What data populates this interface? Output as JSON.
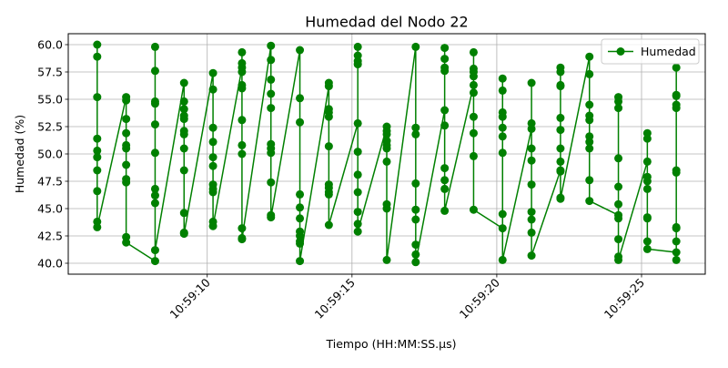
{
  "chart_data": {
    "type": "line",
    "title": "Humedad del Nodo 22",
    "xlabel": "Tiempo (HH:MM:SS.µs)",
    "ylabel": "Humedad (%)",
    "xlim": [
      "10:59:05.2",
      "10:59:27.2"
    ],
    "ylim": [
      39.0,
      61.0
    ],
    "x_ticks": [
      "10:59:10",
      "10:59:15",
      "10:59:20",
      "10:59:25"
    ],
    "y_ticks": [
      "40.0",
      "42.5",
      "45.0",
      "47.5",
      "50.0",
      "52.5",
      "55.0",
      "57.5",
      "60.0"
    ],
    "grid": true,
    "legend_position": "top-right",
    "series": [
      {
        "name": "Humedad",
        "color": "#008000",
        "marker": "circle",
        "points": [
          {
            "t": "10:59:06.2",
            "y": 60.0
          },
          {
            "t": "10:59:06.2",
            "y": 58.9
          },
          {
            "t": "10:59:06.2",
            "y": 55.2
          },
          {
            "t": "10:59:06.2",
            "y": 51.4
          },
          {
            "t": "10:59:06.2",
            "y": 50.3
          },
          {
            "t": "10:59:06.2",
            "y": 49.7
          },
          {
            "t": "10:59:06.2",
            "y": 48.5
          },
          {
            "t": "10:59:06.2",
            "y": 46.6
          },
          {
            "t": "10:59:06.2",
            "y": 43.8
          },
          {
            "t": "10:59:06.2",
            "y": 43.3
          },
          {
            "t": "10:59:07.2",
            "y": 55.2
          },
          {
            "t": "10:59:07.2",
            "y": 54.9
          },
          {
            "t": "10:59:07.2",
            "y": 53.2
          },
          {
            "t": "10:59:07.2",
            "y": 51.9
          },
          {
            "t": "10:59:07.2",
            "y": 50.8
          },
          {
            "t": "10:59:07.2",
            "y": 50.5
          },
          {
            "t": "10:59:07.2",
            "y": 49.0
          },
          {
            "t": "10:59:07.2",
            "y": 47.7
          },
          {
            "t": "10:59:07.2",
            "y": 47.4
          },
          {
            "t": "10:59:07.2",
            "y": 42.4
          },
          {
            "t": "10:59:07.2",
            "y": 41.9
          },
          {
            "t": "10:59:08.2",
            "y": 40.2
          },
          {
            "t": "10:59:08.2",
            "y": 59.8
          },
          {
            "t": "10:59:08.2",
            "y": 57.6
          },
          {
            "t": "10:59:08.2",
            "y": 54.8
          },
          {
            "t": "10:59:08.2",
            "y": 54.6
          },
          {
            "t": "10:59:08.2",
            "y": 52.7
          },
          {
            "t": "10:59:08.2",
            "y": 50.1
          },
          {
            "t": "10:59:08.2",
            "y": 46.8
          },
          {
            "t": "10:59:08.2",
            "y": 46.2
          },
          {
            "t": "10:59:08.2",
            "y": 45.5
          },
          {
            "t": "10:59:08.2",
            "y": 41.2
          },
          {
            "t": "10:59:09.2",
            "y": 56.5
          },
          {
            "t": "10:59:09.2",
            "y": 54.8
          },
          {
            "t": "10:59:09.2",
            "y": 54.1
          },
          {
            "t": "10:59:09.2",
            "y": 53.5
          },
          {
            "t": "10:59:09.2",
            "y": 53.2
          },
          {
            "t": "10:59:09.2",
            "y": 52.1
          },
          {
            "t": "10:59:09.2",
            "y": 51.8
          },
          {
            "t": "10:59:09.2",
            "y": 50.5
          },
          {
            "t": "10:59:09.2",
            "y": 48.5
          },
          {
            "t": "10:59:09.2",
            "y": 44.6
          },
          {
            "t": "10:59:09.2",
            "y": 42.8
          },
          {
            "t": "10:59:09.2",
            "y": 42.7
          },
          {
            "t": "10:59:10.2",
            "y": 57.4
          },
          {
            "t": "10:59:10.2",
            "y": 55.9
          },
          {
            "t": "10:59:10.2",
            "y": 52.4
          },
          {
            "t": "10:59:10.2",
            "y": 51.1
          },
          {
            "t": "10:59:10.2",
            "y": 49.7
          },
          {
            "t": "10:59:10.2",
            "y": 48.9
          },
          {
            "t": "10:59:10.2",
            "y": 47.2
          },
          {
            "t": "10:59:10.2",
            "y": 46.8
          },
          {
            "t": "10:59:10.2",
            "y": 46.5
          },
          {
            "t": "10:59:10.2",
            "y": 43.8
          },
          {
            "t": "10:59:10.2",
            "y": 43.4
          },
          {
            "t": "10:59:11.2",
            "y": 57.9
          },
          {
            "t": "10:59:11.2",
            "y": 59.3
          },
          {
            "t": "10:59:11.2",
            "y": 58.3
          },
          {
            "t": "10:59:11.2",
            "y": 57.5
          },
          {
            "t": "10:59:11.2",
            "y": 56.3
          },
          {
            "t": "10:59:11.2",
            "y": 56.0
          },
          {
            "t": "10:59:11.2",
            "y": 53.1
          },
          {
            "t": "10:59:11.2",
            "y": 50.8
          },
          {
            "t": "10:59:11.2",
            "y": 50.0
          },
          {
            "t": "10:59:11.2",
            "y": 43.2
          },
          {
            "t": "10:59:11.2",
            "y": 42.3
          },
          {
            "t": "10:59:11.2",
            "y": 42.2
          },
          {
            "t": "10:59:12.2",
            "y": 59.9
          },
          {
            "t": "10:59:12.2",
            "y": 58.6
          },
          {
            "t": "10:59:12.2",
            "y": 56.8
          },
          {
            "t": "10:59:12.2",
            "y": 55.5
          },
          {
            "t": "10:59:12.2",
            "y": 54.2
          },
          {
            "t": "10:59:12.2",
            "y": 50.9
          },
          {
            "t": "10:59:12.2",
            "y": 50.5
          },
          {
            "t": "10:59:12.2",
            "y": 50.1
          },
          {
            "t": "10:59:12.2",
            "y": 47.4
          },
          {
            "t": "10:59:12.2",
            "y": 44.4
          },
          {
            "t": "10:59:12.2",
            "y": 44.2
          },
          {
            "t": "10:59:13.2",
            "y": 59.5
          },
          {
            "t": "10:59:13.2",
            "y": 55.1
          },
          {
            "t": "10:59:13.2",
            "y": 52.9
          },
          {
            "t": "10:59:13.2",
            "y": 46.3
          },
          {
            "t": "10:59:13.2",
            "y": 45.1
          },
          {
            "t": "10:59:13.2",
            "y": 44.1
          },
          {
            "t": "10:59:13.2",
            "y": 42.9
          },
          {
            "t": "10:59:13.2",
            "y": 42.5
          },
          {
            "t": "10:59:13.2",
            "y": 42.0
          },
          {
            "t": "10:59:13.2",
            "y": 41.8
          },
          {
            "t": "10:59:13.2",
            "y": 40.2
          },
          {
            "t": "10:59:14.2",
            "y": 56.2
          },
          {
            "t": "10:59:14.2",
            "y": 56.5
          },
          {
            "t": "10:59:14.2",
            "y": 54.1
          },
          {
            "t": "10:59:14.2",
            "y": 53.8
          },
          {
            "t": "10:59:14.2",
            "y": 53.4
          },
          {
            "t": "10:59:14.2",
            "y": 50.7
          },
          {
            "t": "10:59:14.2",
            "y": 47.2
          },
          {
            "t": "10:59:14.2",
            "y": 46.9
          },
          {
            "t": "10:59:14.2",
            "y": 46.5
          },
          {
            "t": "10:59:14.2",
            "y": 46.3
          },
          {
            "t": "10:59:14.2",
            "y": 43.5
          },
          {
            "t": "10:59:15.2",
            "y": 52.8
          },
          {
            "t": "10:59:15.2",
            "y": 59.8
          },
          {
            "t": "10:59:15.2",
            "y": 59.0
          },
          {
            "t": "10:59:15.2",
            "y": 58.5
          },
          {
            "t": "10:59:15.2",
            "y": 58.2
          },
          {
            "t": "10:59:15.2",
            "y": 50.2
          },
          {
            "t": "10:59:15.2",
            "y": 48.1
          },
          {
            "t": "10:59:15.2",
            "y": 46.5
          },
          {
            "t": "10:59:15.2",
            "y": 44.7
          },
          {
            "t": "10:59:15.2",
            "y": 43.6
          },
          {
            "t": "10:59:15.2",
            "y": 42.9
          },
          {
            "t": "10:59:16.2",
            "y": 52.5
          },
          {
            "t": "10:59:16.2",
            "y": 52.1
          },
          {
            "t": "10:59:16.2",
            "y": 51.8
          },
          {
            "t": "10:59:16.2",
            "y": 51.2
          },
          {
            "t": "10:59:16.2",
            "y": 50.8
          },
          {
            "t": "10:59:16.2",
            "y": 50.5
          },
          {
            "t": "10:59:16.2",
            "y": 49.3
          },
          {
            "t": "10:59:16.2",
            "y": 45.4
          },
          {
            "t": "10:59:16.2",
            "y": 45.0
          },
          {
            "t": "10:59:16.2",
            "y": 40.3
          },
          {
            "t": "10:59:17.2",
            "y": 59.8
          },
          {
            "t": "10:59:17.2",
            "y": 52.4
          },
          {
            "t": "10:59:17.2",
            "y": 51.8
          },
          {
            "t": "10:59:17.2",
            "y": 47.3
          },
          {
            "t": "10:59:17.2",
            "y": 44.9
          },
          {
            "t": "10:59:17.2",
            "y": 44.0
          },
          {
            "t": "10:59:17.2",
            "y": 41.7
          },
          {
            "t": "10:59:17.2",
            "y": 40.8
          },
          {
            "t": "10:59:17.2",
            "y": 40.1
          },
          {
            "t": "10:59:18.2",
            "y": 54.0
          },
          {
            "t": "10:59:18.2",
            "y": 59.7
          },
          {
            "t": "10:59:18.2",
            "y": 58.7
          },
          {
            "t": "10:59:18.2",
            "y": 57.9
          },
          {
            "t": "10:59:18.2",
            "y": 57.6
          },
          {
            "t": "10:59:18.2",
            "y": 52.6
          },
          {
            "t": "10:59:18.2",
            "y": 48.7
          },
          {
            "t": "10:59:18.2",
            "y": 47.6
          },
          {
            "t": "10:59:18.2",
            "y": 46.8
          },
          {
            "t": "10:59:18.2",
            "y": 44.8
          },
          {
            "t": "10:59:19.2",
            "y": 56.3
          },
          {
            "t": "10:59:19.2",
            "y": 59.3
          },
          {
            "t": "10:59:19.2",
            "y": 57.8
          },
          {
            "t": "10:59:19.2",
            "y": 57.5
          },
          {
            "t": "10:59:19.2",
            "y": 57.1
          },
          {
            "t": "10:59:19.2",
            "y": 55.6
          },
          {
            "t": "10:59:19.2",
            "y": 53.4
          },
          {
            "t": "10:59:19.2",
            "y": 51.9
          },
          {
            "t": "10:59:19.2",
            "y": 49.8
          },
          {
            "t": "10:59:19.2",
            "y": 44.9
          },
          {
            "t": "10:59:20.2",
            "y": 43.2
          },
          {
            "t": "10:59:20.2",
            "y": 56.9
          },
          {
            "t": "10:59:20.2",
            "y": 55.8
          },
          {
            "t": "10:59:20.2",
            "y": 53.8
          },
          {
            "t": "10:59:20.2",
            "y": 53.4
          },
          {
            "t": "10:59:20.2",
            "y": 52.4
          },
          {
            "t": "10:59:20.2",
            "y": 51.6
          },
          {
            "t": "10:59:20.2",
            "y": 50.1
          },
          {
            "t": "10:59:20.2",
            "y": 44.5
          },
          {
            "t": "10:59:20.2",
            "y": 40.3
          },
          {
            "t": "10:59:21.2",
            "y": 52.3
          },
          {
            "t": "10:59:21.2",
            "y": 56.5
          },
          {
            "t": "10:59:21.2",
            "y": 52.8
          },
          {
            "t": "10:59:21.2",
            "y": 50.5
          },
          {
            "t": "10:59:21.2",
            "y": 49.4
          },
          {
            "t": "10:59:21.2",
            "y": 47.2
          },
          {
            "t": "10:59:21.2",
            "y": 44.7
          },
          {
            "t": "10:59:21.2",
            "y": 44.0
          },
          {
            "t": "10:59:21.2",
            "y": 42.8
          },
          {
            "t": "10:59:21.2",
            "y": 40.7
          },
          {
            "t": "10:59:22.2",
            "y": 48.5
          },
          {
            "t": "10:59:22.2",
            "y": 57.9
          },
          {
            "t": "10:59:22.2",
            "y": 57.5
          },
          {
            "t": "10:59:22.2",
            "y": 56.3
          },
          {
            "t": "10:59:22.2",
            "y": 56.2
          },
          {
            "t": "10:59:22.2",
            "y": 53.3
          },
          {
            "t": "10:59:22.2",
            "y": 52.2
          },
          {
            "t": "10:59:22.2",
            "y": 50.5
          },
          {
            "t": "10:59:22.2",
            "y": 49.3
          },
          {
            "t": "10:59:22.2",
            "y": 48.4
          },
          {
            "t": "10:59:22.2",
            "y": 46.0
          },
          {
            "t": "10:59:22.2",
            "y": 45.9
          },
          {
            "t": "10:59:23.2",
            "y": 58.9
          },
          {
            "t": "10:59:23.2",
            "y": 57.3
          },
          {
            "t": "10:59:23.2",
            "y": 54.5
          },
          {
            "t": "10:59:23.2",
            "y": 53.5
          },
          {
            "t": "10:59:23.2",
            "y": 53.1
          },
          {
            "t": "10:59:23.2",
            "y": 51.6
          },
          {
            "t": "10:59:23.2",
            "y": 51.1
          },
          {
            "t": "10:59:23.2",
            "y": 50.5
          },
          {
            "t": "10:59:23.2",
            "y": 47.6
          },
          {
            "t": "10:59:23.2",
            "y": 45.7
          },
          {
            "t": "10:59:24.2",
            "y": 44.4
          },
          {
            "t": "10:59:24.2",
            "y": 55.2
          },
          {
            "t": "10:59:24.2",
            "y": 54.8
          },
          {
            "t": "10:59:24.2",
            "y": 54.2
          },
          {
            "t": "10:59:24.2",
            "y": 49.6
          },
          {
            "t": "10:59:24.2",
            "y": 47.0
          },
          {
            "t": "10:59:24.2",
            "y": 45.4
          },
          {
            "t": "10:59:24.2",
            "y": 44.1
          },
          {
            "t": "10:59:24.2",
            "y": 42.2
          },
          {
            "t": "10:59:24.2",
            "y": 40.6
          },
          {
            "t": "10:59:24.2",
            "y": 40.3
          },
          {
            "t": "10:59:25.2",
            "y": 49.3
          },
          {
            "t": "10:59:25.2",
            "y": 51.9
          },
          {
            "t": "10:59:25.2",
            "y": 51.4
          },
          {
            "t": "10:59:25.2",
            "y": 47.9
          },
          {
            "t": "10:59:25.2",
            "y": 47.5
          },
          {
            "t": "10:59:25.2",
            "y": 46.8
          },
          {
            "t": "10:59:25.2",
            "y": 44.2
          },
          {
            "t": "10:59:25.2",
            "y": 44.1
          },
          {
            "t": "10:59:25.2",
            "y": 42.0
          },
          {
            "t": "10:59:25.2",
            "y": 41.3
          },
          {
            "t": "10:59:26.2",
            "y": 41.0
          },
          {
            "t": "10:59:26.2",
            "y": 57.9
          },
          {
            "t": "10:59:26.2",
            "y": 55.4
          },
          {
            "t": "10:59:26.2",
            "y": 55.3
          },
          {
            "t": "10:59:26.2",
            "y": 54.5
          },
          {
            "t": "10:59:26.2",
            "y": 54.2
          },
          {
            "t": "10:59:26.2",
            "y": 48.5
          },
          {
            "t": "10:59:26.2",
            "y": 48.3
          },
          {
            "t": "10:59:26.2",
            "y": 43.3
          },
          {
            "t": "10:59:26.2",
            "y": 43.2
          },
          {
            "t": "10:59:26.2",
            "y": 42.0
          },
          {
            "t": "10:59:26.2",
            "y": 40.3
          }
        ]
      }
    ]
  }
}
